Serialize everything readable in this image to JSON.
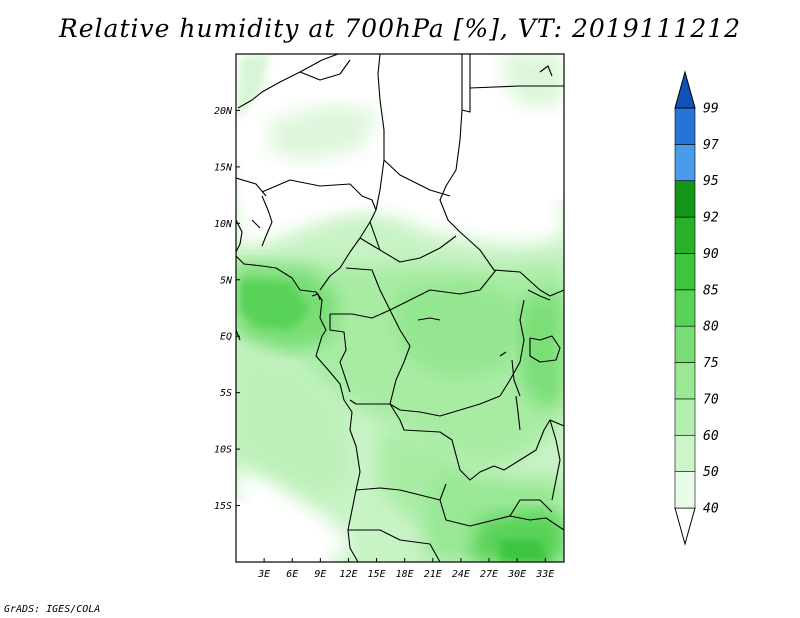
{
  "title": "Relative humidity at 700hPa [%], VT: 2019111212",
  "credit": "GrADS: IGES/COLA",
  "map": {
    "lat_labels": [
      "20N",
      "15N",
      "10N",
      "5N",
      "EQ",
      "5S",
      "10S",
      "15S"
    ],
    "lat_values": [
      20,
      15,
      10,
      5,
      0,
      -5,
      -10,
      -15
    ],
    "lon_labels": [
      "3E",
      "6E",
      "9E",
      "12E",
      "15E",
      "18E",
      "21E",
      "24E",
      "27E",
      "30E",
      "33E"
    ],
    "lon_values": [
      3,
      6,
      9,
      12,
      15,
      18,
      21,
      24,
      27,
      30,
      33
    ],
    "lon_range": [
      0,
      35
    ],
    "lat_range": [
      -20,
      25
    ]
  },
  "colorbar": {
    "levels": [
      "40",
      "50",
      "60",
      "70",
      "75",
      "80",
      "85",
      "90",
      "92",
      "95",
      "97",
      "99"
    ],
    "colors": [
      "#ffffff",
      "#e8fbe6",
      "#cdf5ca",
      "#b4efb0",
      "#98e894",
      "#78dd74",
      "#58d257",
      "#3ec43f",
      "#27b229",
      "#14951a",
      "#4a9bea",
      "#2674d8",
      "#1251b8"
    ]
  }
}
